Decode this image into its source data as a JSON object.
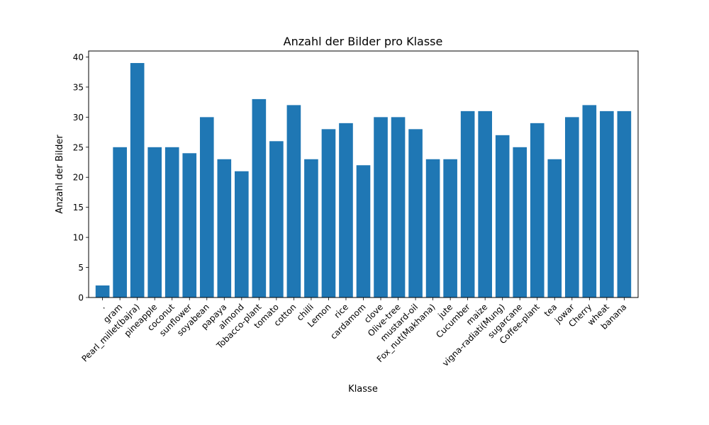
{
  "chart_data": {
    "type": "bar",
    "title": "Anzahl der Bilder pro Klasse",
    "xlabel": "Klasse",
    "ylabel": "Anzahl der Bilder",
    "ylim": [
      0,
      41
    ],
    "yticks": [
      0,
      5,
      10,
      15,
      20,
      25,
      30,
      35,
      40
    ],
    "grid": false,
    "bar_color": "#1f77b4",
    "categories": [
      ".",
      "gram",
      "Pearl_millet(bajra)",
      "pineapple",
      "coconut",
      "sunflower",
      "soyabean",
      "papaya",
      "almond",
      "Tobacco-plant",
      "tomato",
      "cotton",
      "chilli",
      "Lemon",
      "rice",
      "cardamom",
      "clove",
      "Olive-tree",
      "mustard-oil",
      "Fox_nut(Makhana)",
      "jute",
      "Cucumber",
      "maize",
      "vigna-radiati(Mung)",
      "sugarcane",
      "Coffee-plant",
      "tea",
      "jowar",
      "Cherry",
      "wheat",
      "banana"
    ],
    "values": [
      2,
      25,
      39,
      25,
      25,
      24,
      30,
      23,
      21,
      33,
      26,
      32,
      23,
      28,
      29,
      22,
      30,
      30,
      28,
      23,
      23,
      31,
      31,
      27,
      25,
      29,
      23,
      30,
      32,
      31,
      31
    ]
  }
}
